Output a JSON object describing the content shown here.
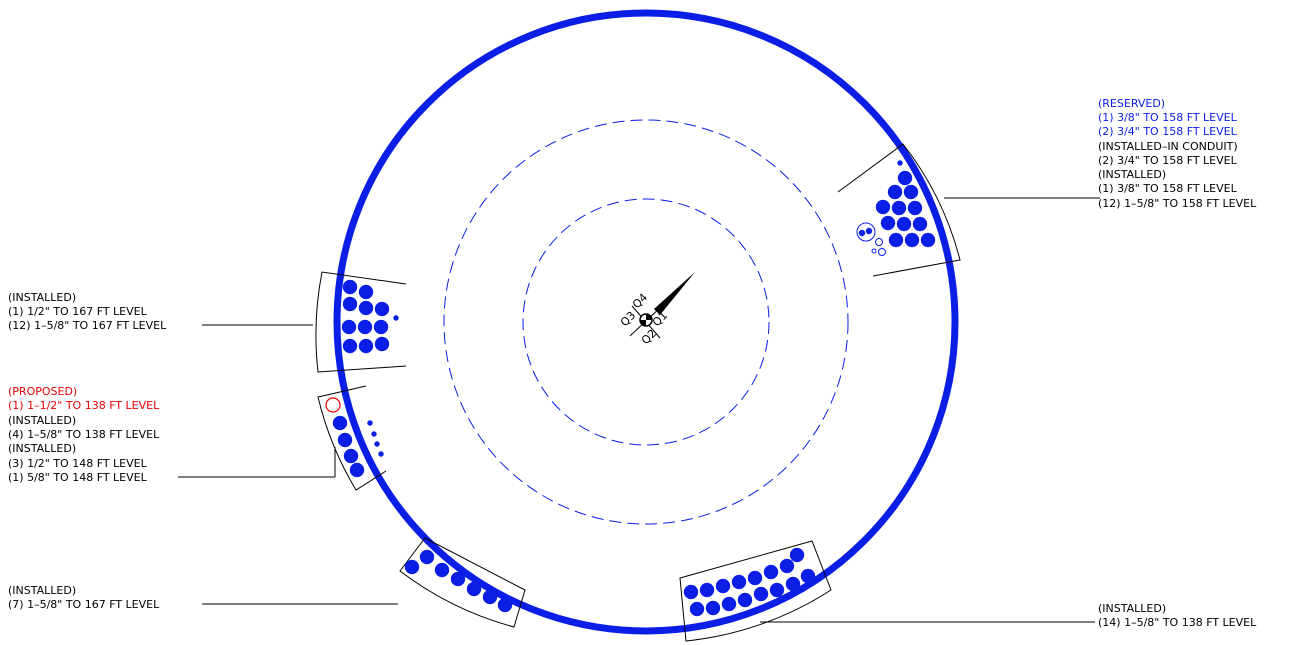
{
  "colors": {
    "installed": "#000000",
    "reserved": "#0a1ee6",
    "proposed": "#e60000",
    "structure": "#0a1ee6"
  },
  "icons": {
    "center_marker": "crosshair-icon",
    "north_arrow": "north-arrow-icon"
  },
  "quadrants": [
    "Q1",
    "Q2",
    "Q3",
    "Q4"
  ],
  "notes": {
    "northeast": {
      "lines": [
        {
          "text": "(RESERVED)",
          "status": "reserved"
        },
        {
          "text": "(1) 3/8\" TO 158 FT LEVEL",
          "status": "reserved"
        },
        {
          "text": "(2) 3/4\" TO 158 FT LEVEL",
          "status": "reserved"
        },
        {
          "text": "(INSTALLED–IN CONDUIT)",
          "status": "installed"
        },
        {
          "text": "(2) 3/4\" TO 158 FT LEVEL",
          "status": "installed"
        },
        {
          "text": "(INSTALLED)",
          "status": "installed"
        },
        {
          "text": "(1) 3/8\" TO 158 FT LEVEL",
          "status": "installed"
        },
        {
          "text": "(12) 1–5/8\" TO 158 FT LEVEL",
          "status": "installed"
        }
      ]
    },
    "west": {
      "lines": [
        {
          "text": "(INSTALLED)",
          "status": "installed"
        },
        {
          "text": "(1) 1/2\" TO 167 FT LEVEL",
          "status": "installed"
        },
        {
          "text": "(12) 1–5/8\" TO 167 FT LEVEL",
          "status": "installed"
        }
      ]
    },
    "southwest": {
      "lines": [
        {
          "text": "(PROPOSED)",
          "status": "proposed"
        },
        {
          "text": "(1) 1–1/2\" TO 138 FT LEVEL",
          "status": "proposed"
        },
        {
          "text": "(INSTALLED)",
          "status": "installed"
        },
        {
          "text": "(4) 1–5/8\" TO 138 FT LEVEL",
          "status": "installed"
        },
        {
          "text": "(INSTALLED)",
          "status": "installed"
        },
        {
          "text": "(3) 1/2\" TO 148 FT LEVEL",
          "status": "installed"
        },
        {
          "text": "(1) 5/8\" TO 148 FT LEVEL",
          "status": "installed"
        }
      ]
    },
    "bottom_left": {
      "lines": [
        {
          "text": "(INSTALLED)",
          "status": "installed"
        },
        {
          "text": "(7) 1–5/8\" TO 167 FT LEVEL",
          "status": "installed"
        }
      ]
    },
    "bottom_right": {
      "lines": [
        {
          "text": "(INSTALLED)",
          "status": "installed"
        },
        {
          "text": "(14) 1–5/8\" TO 138 FT LEVEL",
          "status": "installed"
        }
      ]
    }
  }
}
